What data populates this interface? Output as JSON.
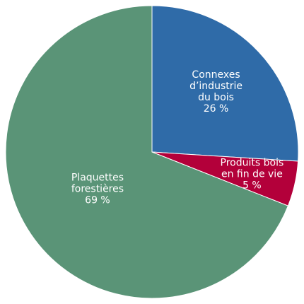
{
  "chart_data": {
    "type": "pie",
    "categories": [
      [
        "Connexes",
        "d’industrie",
        "du bois"
      ],
      [
        "Produits bois",
        "en fin de vie"
      ],
      [
        "Plaquettes",
        "forestières"
      ]
    ],
    "values": [
      26,
      5,
      69
    ],
    "value_labels": [
      "26 %",
      "5 %",
      "69 %"
    ],
    "colors": [
      "#2f6ba8",
      "#b3003a",
      "#5a9477"
    ]
  }
}
